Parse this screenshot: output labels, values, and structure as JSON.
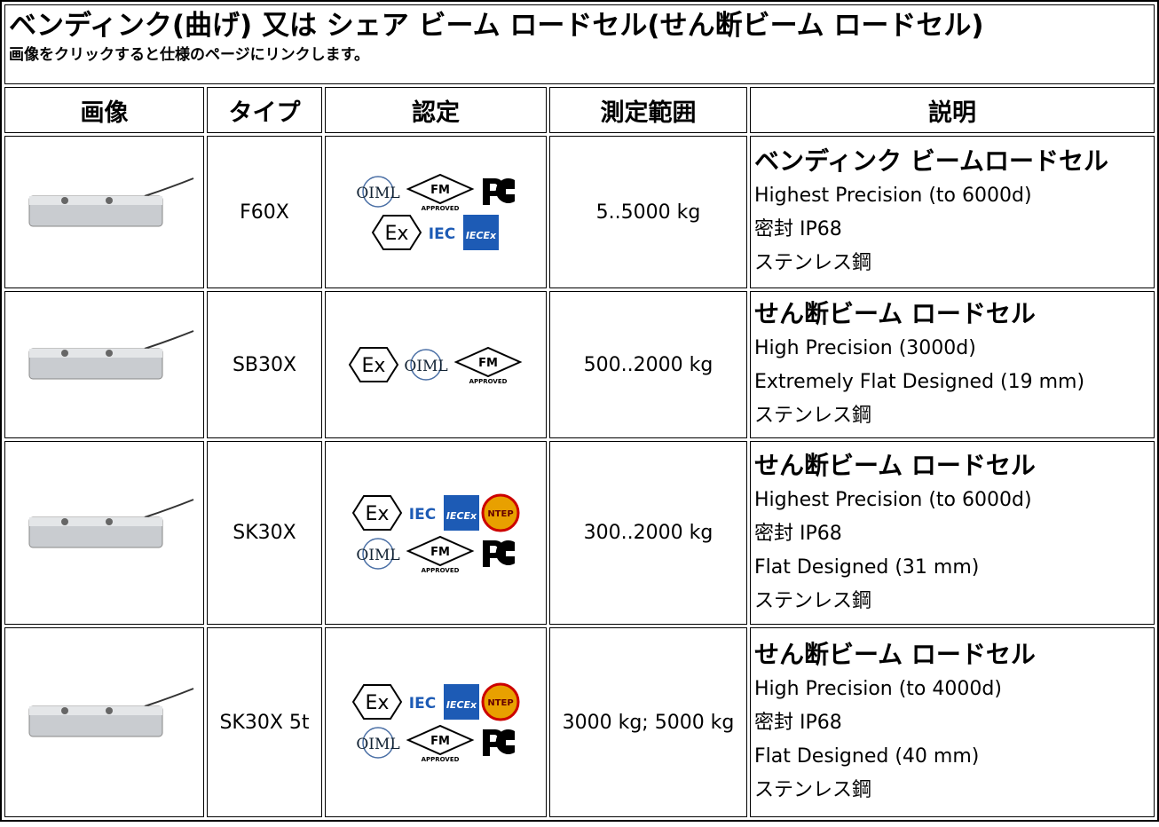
{
  "title": "ベンディンク(曲げ) 又は シェア ビーム ロードセル(せん断ビーム ロードセル)",
  "subtitle": "画像をクリックすると仕様のページにリンクします。",
  "headers": [
    "画像",
    "タイプ",
    "認定",
    "測定範囲",
    "説明"
  ],
  "logo_texts": {
    "oiml": "OIML",
    "fm": "FM",
    "approved": "APPROVED",
    "iec": "IEC",
    "iecex": "IECEx",
    "ex": "Ex",
    "ntep": "NTEP"
  },
  "rows": [
    {
      "type": "F60X",
      "range": "5..5000 kg",
      "description": {
        "heading": "ベンディンク ビームロードセル",
        "lines": [
          "Highest Precision (to 6000d)",
          "密封 IP68",
          "ステンレス鋼"
        ]
      }
    },
    {
      "type": "SB30X",
      "range": "500..2000 kg",
      "description": {
        "heading": "せん断ビーム ロードセル",
        "lines": [
          "High Precision (3000d)",
          "Extremely Flat Designed (19 mm)",
          "ステンレス鋼"
        ]
      }
    },
    {
      "type": "SK30X",
      "range": "300..2000 kg",
      "description": {
        "heading": "せん断ビーム ロードセル",
        "lines": [
          "Highest Precision (to 6000d)",
          "密封 IP68",
          "Flat Designed (31 mm)",
          "ステンレス鋼"
        ]
      }
    },
    {
      "type": "SK30X 5t",
      "range": "3000 kg; 5000 kg",
      "description": {
        "heading": "せん断ビーム ロードセル",
        "lines": [
          "High Precision (to 4000d)",
          "密封 IP68",
          "Flat Designed (40 mm)",
          "ステンレス鋼"
        ]
      }
    }
  ]
}
